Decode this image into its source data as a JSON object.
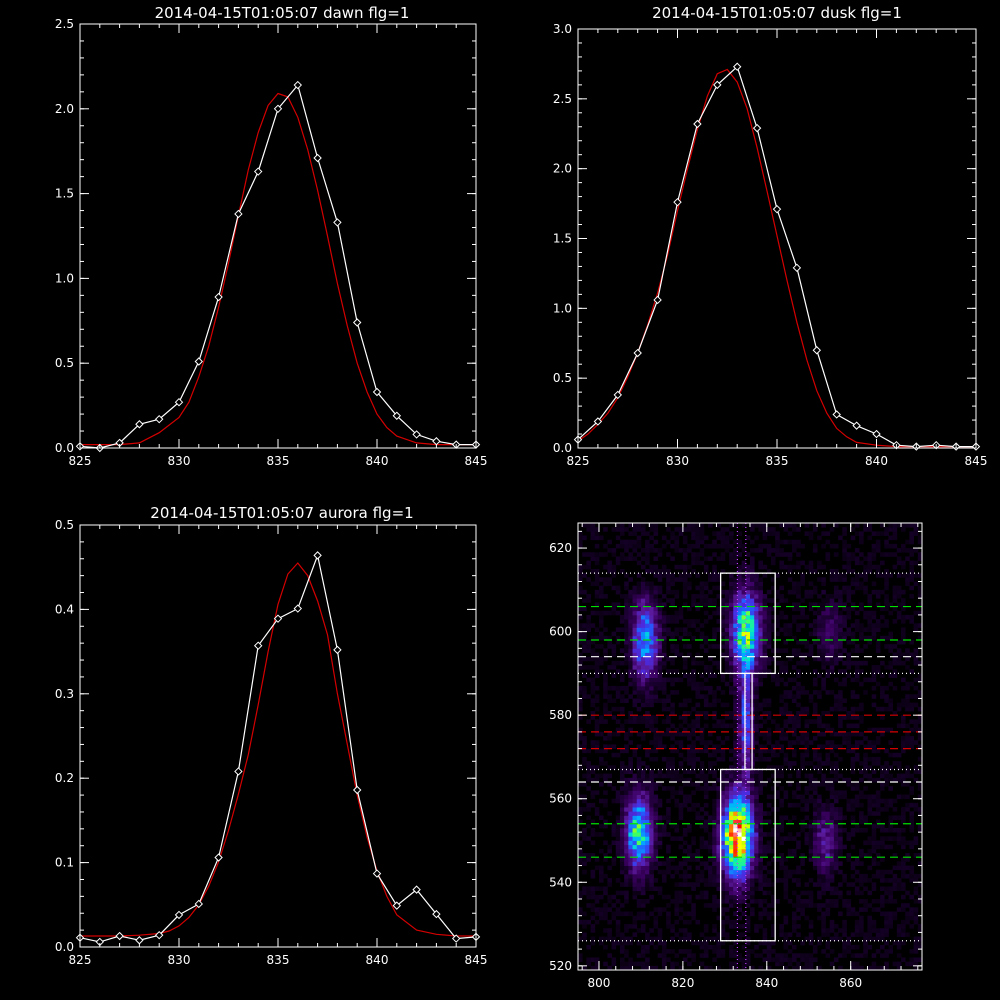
{
  "chart_data": [
    {
      "id": "dawn",
      "type": "line",
      "title": "2014-04-15T01:05:07 dawn flg=1",
      "xlim": [
        825,
        845
      ],
      "ylim": [
        0,
        2.5
      ],
      "xticks": [
        825,
        830,
        835,
        840,
        845
      ],
      "yticks": [
        0.0,
        0.5,
        1.0,
        1.5,
        2.0,
        2.5
      ],
      "x_minor_step": 1,
      "y_minor_step": 0.1,
      "series": [
        {
          "color": "#ffffff",
          "marker": "diamond",
          "x": [
            825,
            826,
            827,
            828,
            829,
            830,
            831,
            832,
            833,
            834,
            835,
            836,
            837,
            838,
            839,
            840,
            841,
            842,
            843,
            844,
            845
          ],
          "values": [
            0.01,
            0.0,
            0.03,
            0.14,
            0.17,
            0.27,
            0.51,
            0.89,
            1.38,
            1.63,
            2.0,
            2.14,
            1.71,
            1.33,
            0.74,
            0.33,
            0.19,
            0.08,
            0.04,
            0.02,
            0.02
          ]
        },
        {
          "color": "#d40000",
          "marker": "none",
          "fit": "gaussian",
          "x": [
            825,
            826,
            827,
            828,
            829,
            830,
            830.5,
            831,
            831.5,
            832,
            832.5,
            833,
            833.5,
            834,
            834.5,
            835,
            835.5,
            836,
            836.5,
            837,
            837.5,
            838,
            838.5,
            839,
            839.5,
            840,
            840.5,
            841,
            842,
            843,
            844,
            845
          ],
          "values": [
            0.02,
            0.02,
            0.02,
            0.03,
            0.09,
            0.18,
            0.27,
            0.42,
            0.6,
            0.83,
            1.09,
            1.37,
            1.64,
            1.86,
            2.02,
            2.09,
            2.07,
            1.95,
            1.76,
            1.52,
            1.25,
            0.97,
            0.72,
            0.5,
            0.33,
            0.2,
            0.12,
            0.07,
            0.03,
            0.02,
            0.02,
            0.02
          ]
        }
      ]
    },
    {
      "id": "dusk",
      "type": "line",
      "title": "2014-04-15T01:05:07 dusk flg=1",
      "xlim": [
        825,
        845
      ],
      "ylim": [
        0,
        3.0
      ],
      "xticks": [
        825,
        830,
        835,
        840,
        845
      ],
      "yticks": [
        0.0,
        0.5,
        1.0,
        1.5,
        2.0,
        2.5,
        3.0
      ],
      "x_minor_step": 1,
      "y_minor_step": 0.1,
      "series": [
        {
          "color": "#ffffff",
          "marker": "diamond",
          "x": [
            825,
            826,
            827,
            828,
            829,
            830,
            831,
            832,
            833,
            834,
            835,
            836,
            837,
            838,
            839,
            840,
            841,
            842,
            843,
            844,
            845
          ],
          "values": [
            0.06,
            0.19,
            0.38,
            0.68,
            1.06,
            1.76,
            2.32,
            2.6,
            2.73,
            2.29,
            1.71,
            1.29,
            0.7,
            0.24,
            0.16,
            0.1,
            0.02,
            0.01,
            0.02,
            0.01,
            0.01
          ]
        },
        {
          "color": "#d40000",
          "marker": "none",
          "fit": "gaussian",
          "x": [
            825,
            825.5,
            826,
            826.5,
            827,
            827.5,
            828,
            828.5,
            829,
            829.5,
            830,
            830.5,
            831,
            831.5,
            832,
            832.5,
            833,
            833.5,
            834,
            834.5,
            835,
            835.5,
            836,
            836.5,
            837,
            837.5,
            838,
            838.5,
            839,
            840,
            841,
            842,
            843,
            844,
            845
          ],
          "values": [
            0.05,
            0.1,
            0.17,
            0.25,
            0.36,
            0.51,
            0.68,
            0.88,
            1.11,
            1.38,
            1.7,
            2.0,
            2.28,
            2.52,
            2.68,
            2.71,
            2.62,
            2.43,
            2.15,
            1.84,
            1.52,
            1.2,
            0.9,
            0.63,
            0.41,
            0.25,
            0.14,
            0.08,
            0.04,
            0.02,
            0.01,
            0.01,
            0.01,
            0.01,
            0.01
          ]
        }
      ]
    },
    {
      "id": "aurora",
      "type": "line",
      "title": "2014-04-15T01:05:07 aurora flg=1",
      "xlim": [
        825,
        845
      ],
      "ylim": [
        0,
        0.5
      ],
      "xticks": [
        825,
        830,
        835,
        840,
        845
      ],
      "yticks": [
        0.0,
        0.1,
        0.2,
        0.3,
        0.4,
        0.5
      ],
      "x_minor_step": 1,
      "y_minor_step": 0.02,
      "series": [
        {
          "color": "#ffffff",
          "marker": "diamond",
          "x": [
            825,
            826,
            827,
            828,
            829,
            830,
            831,
            832,
            833,
            834,
            835,
            836,
            837,
            838,
            839,
            840,
            841,
            842,
            843,
            844,
            845
          ],
          "values": [
            0.011,
            0.006,
            0.013,
            0.008,
            0.014,
            0.038,
            0.051,
            0.106,
            0.208,
            0.357,
            0.389,
            0.401,
            0.464,
            0.352,
            0.186,
            0.087,
            0.049,
            0.068,
            0.039,
            0.01,
            0.012
          ]
        },
        {
          "color": "#d40000",
          "marker": "none",
          "fit": "gaussian",
          "x": [
            825,
            826,
            827,
            828,
            829,
            829.5,
            830,
            830.5,
            831,
            831.5,
            832,
            832.5,
            833,
            833.5,
            834,
            834.5,
            835,
            835.5,
            836,
            836.5,
            837,
            837.5,
            838,
            838.5,
            839,
            839.5,
            840,
            840.5,
            841,
            842,
            843,
            844,
            845
          ],
          "values": [
            0.013,
            0.013,
            0.013,
            0.014,
            0.016,
            0.019,
            0.025,
            0.035,
            0.05,
            0.072,
            0.101,
            0.138,
            0.181,
            0.228,
            0.287,
            0.35,
            0.406,
            0.442,
            0.455,
            0.44,
            0.41,
            0.37,
            0.3,
            0.24,
            0.18,
            0.13,
            0.09,
            0.06,
            0.038,
            0.02,
            0.015,
            0.013,
            0.013
          ]
        }
      ]
    },
    {
      "id": "image",
      "type": "heatmap",
      "title": "",
      "xlim": [
        795,
        877
      ],
      "ylim": [
        519,
        626
      ],
      "xticks": [
        800,
        820,
        840,
        860
      ],
      "yticks": [
        520,
        540,
        560,
        580,
        600,
        620
      ],
      "x_minor_step": 4,
      "y_minor_step": 4,
      "colorscale": [
        "#000000",
        "#1a0030",
        "#3a0060",
        "#5a1a9a",
        "#4a2ce0",
        "#2060ff",
        "#00b0ff",
        "#00e8c8",
        "#40ff60",
        "#c0ff00",
        "#ffff00",
        "#ff8000",
        "#ff0000",
        "#ffffff"
      ],
      "blobs": [
        {
          "cx": 811,
          "cy": 598,
          "sx": 2.2,
          "sy": 6.5,
          "amp": 0.42
        },
        {
          "cx": 835,
          "cy": 600,
          "sx": 2.3,
          "sy": 6.5,
          "amp": 0.62
        },
        {
          "cx": 855,
          "cy": 600,
          "sx": 2.0,
          "sy": 5.0,
          "amp": 0.14
        },
        {
          "cx": 809.5,
          "cy": 552,
          "sx": 2.2,
          "sy": 6.0,
          "amp": 0.55
        },
        {
          "cx": 833,
          "cy": 551,
          "sx": 2.5,
          "sy": 6.5,
          "amp": 0.93
        },
        {
          "cx": 854,
          "cy": 550,
          "sx": 2.0,
          "sy": 5.0,
          "amp": 0.22
        },
        {
          "cx": 835,
          "cy": 578,
          "sx": 1.2,
          "sy": 9.0,
          "amp": 0.33
        }
      ],
      "boxes": [
        {
          "x0": 829,
          "x1": 842,
          "y0": 590,
          "y1": 614
        },
        {
          "x0": 829,
          "x1": 842,
          "y0": 526,
          "y1": 567
        },
        {
          "x0": 834.8,
          "x1": 836.5,
          "y0": 567,
          "y1": 590
        }
      ],
      "vlines": [
        {
          "x": 833,
          "color": "#c040ff"
        },
        {
          "x": 835,
          "color": "#c040ff"
        }
      ],
      "hlines": [
        {
          "y": 614,
          "color": "#ffffff",
          "style": "dotted"
        },
        {
          "y": 590,
          "color": "#ffffff",
          "style": "dotted"
        },
        {
          "y": 567,
          "color": "#ffffff",
          "style": "dotted"
        },
        {
          "y": 526,
          "color": "#ffffff",
          "style": "dotted"
        },
        {
          "y": 606,
          "color": "#00e000",
          "style": "dashed"
        },
        {
          "y": 598,
          "color": "#00e000",
          "style": "dashed"
        },
        {
          "y": 594,
          "color": "#ffffff",
          "style": "dashed"
        },
        {
          "y": 580,
          "color": "#d40000",
          "style": "dashed"
        },
        {
          "y": 576,
          "color": "#d40000",
          "style": "dashed"
        },
        {
          "y": 572,
          "color": "#d40000",
          "style": "dashed"
        },
        {
          "y": 564,
          "color": "#ffffff",
          "style": "dashed"
        },
        {
          "y": 554,
          "color": "#00e000",
          "style": "dashed"
        },
        {
          "y": 546,
          "color": "#00e000",
          "style": "dashed"
        }
      ]
    }
  ]
}
